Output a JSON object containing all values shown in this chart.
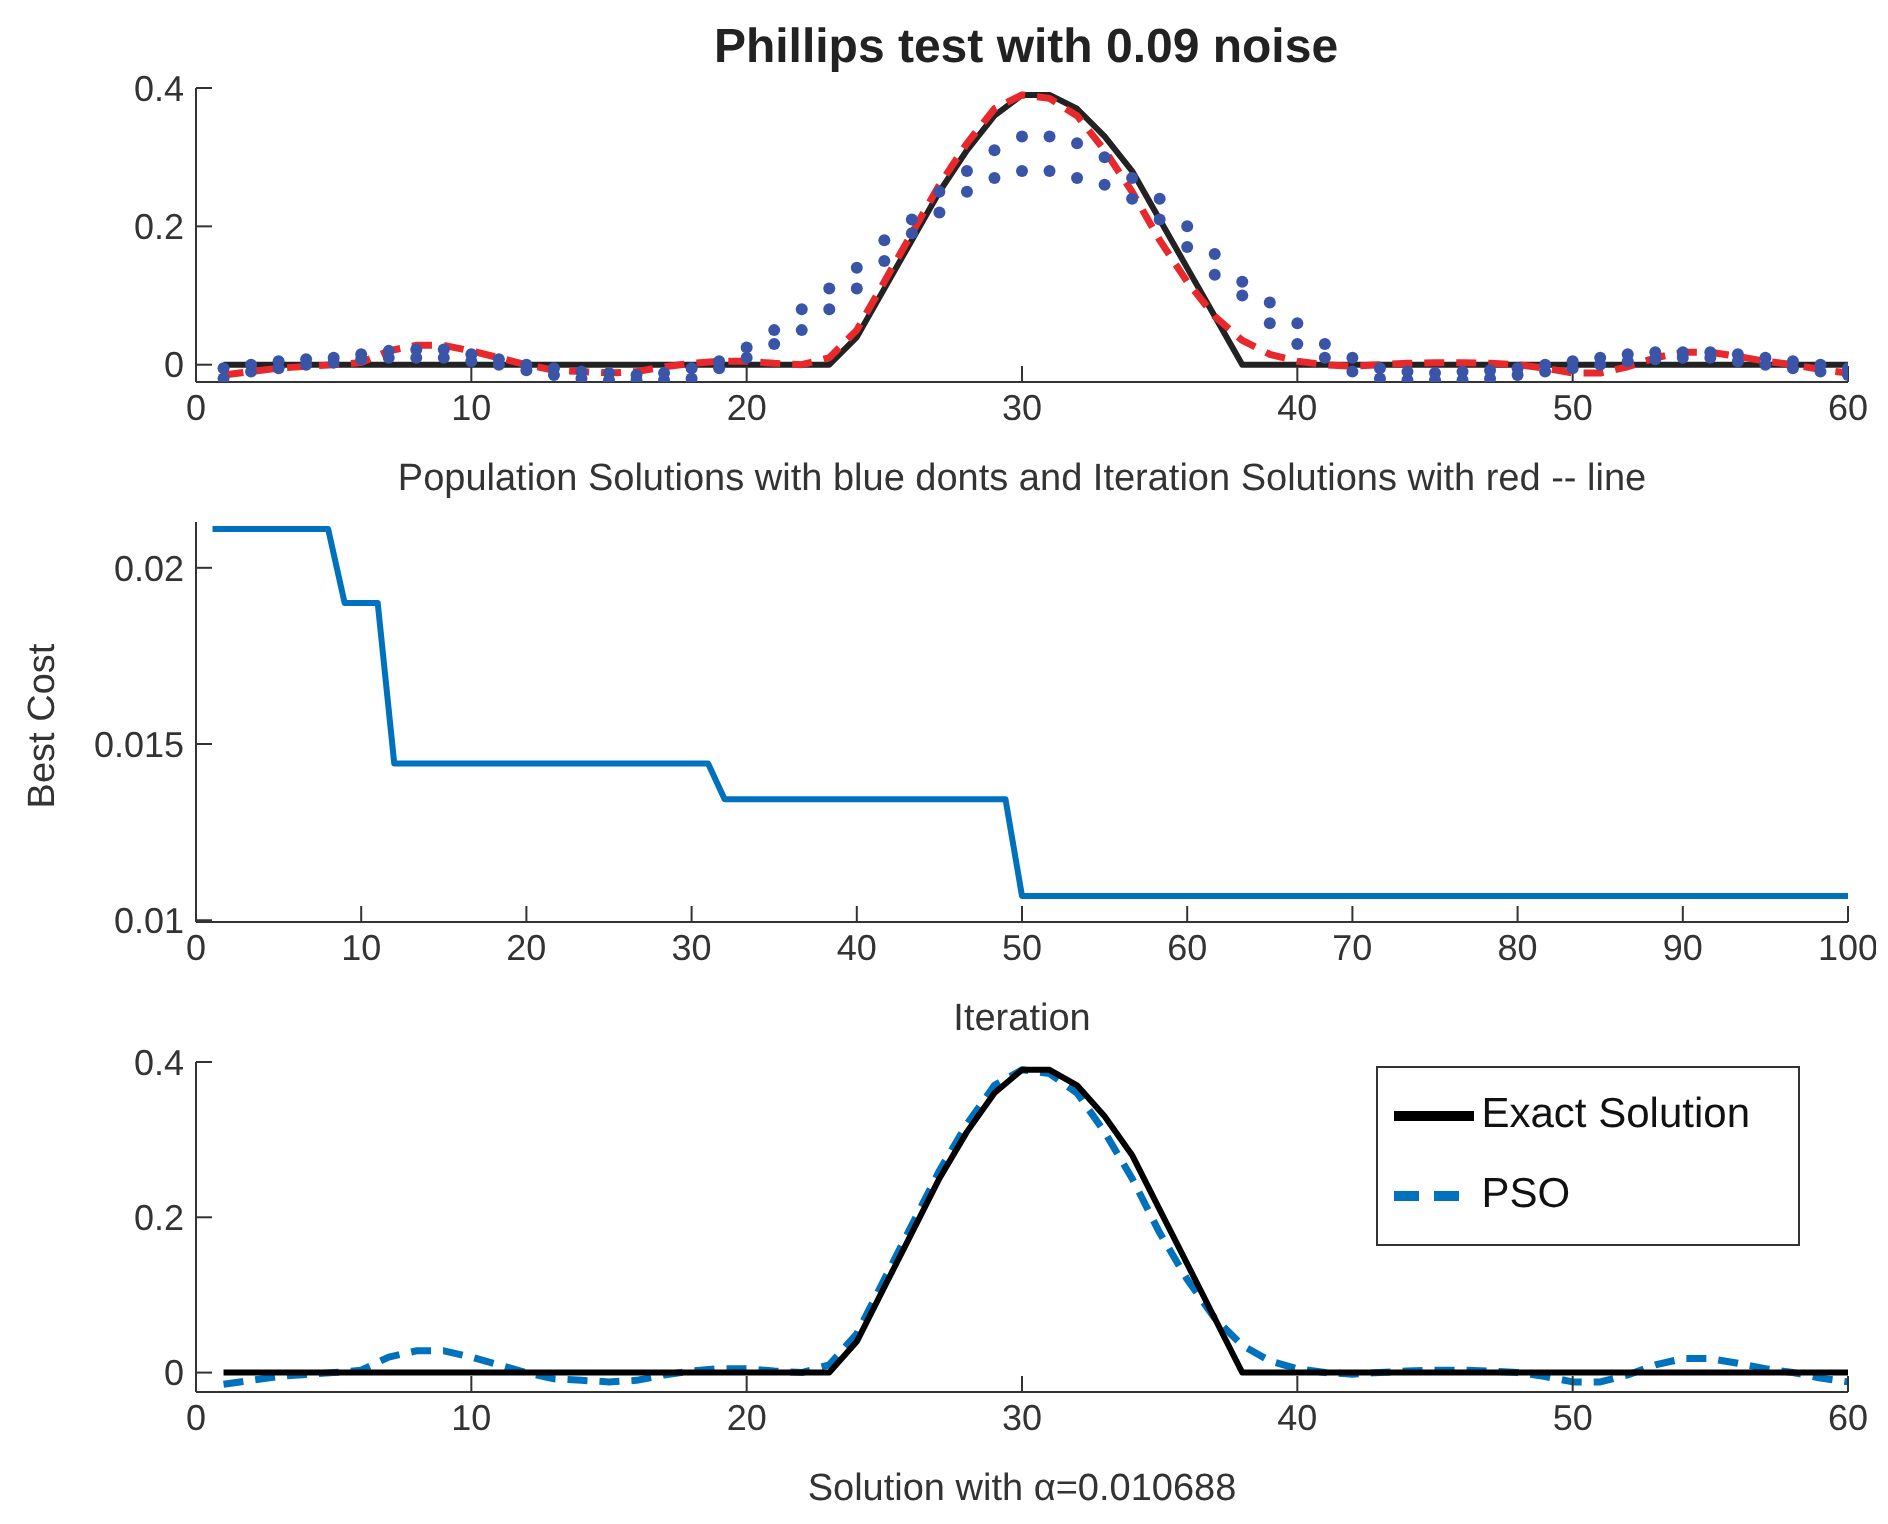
{
  "chart_data": [
    {
      "type": "line",
      "title": "Phillips test with 0.09 noise",
      "xlabel": "Population Solutions  with blue donts  and  Iteration Solutions with red -- line",
      "xlim": [
        0,
        60
      ],
      "xticks": [
        0,
        10,
        20,
        30,
        40,
        50,
        60
      ],
      "ylim": [
        -0.025,
        0.4
      ],
      "yticks": [
        0,
        0.2,
        0.4
      ],
      "grid": false,
      "legend": false,
      "series": [
        {
          "type": "scatter",
          "marker": "circle",
          "color": "#3a55a8",
          "x": [
            1,
            1,
            2,
            2,
            3,
            3,
            4,
            4,
            5,
            5,
            6,
            6,
            7,
            7,
            8,
            8,
            9,
            9,
            10,
            10,
            11,
            11,
            12,
            12,
            13,
            13,
            14,
            14,
            15,
            15,
            16,
            16,
            17,
            17,
            18,
            18,
            19,
            19,
            20,
            20,
            21,
            21,
            22,
            22,
            23,
            23,
            24,
            24,
            25,
            25,
            26,
            26,
            27,
            27,
            28,
            28,
            29,
            29,
            30,
            30,
            31,
            31,
            32,
            32,
            33,
            33,
            34,
            34,
            35,
            35,
            36,
            36,
            37,
            37,
            38,
            38,
            39,
            39,
            40,
            40,
            41,
            41,
            42,
            42,
            43,
            43,
            44,
            44,
            45,
            45,
            46,
            46,
            47,
            47,
            48,
            48,
            49,
            49,
            50,
            50,
            51,
            51,
            52,
            52,
            53,
            53,
            54,
            54,
            55,
            55,
            56,
            56,
            57,
            57,
            58,
            58,
            59,
            59,
            60,
            60
          ],
          "values": [
            -0.02,
            -0.005,
            -0.01,
            0,
            -0.005,
            0.005,
            0,
            0.008,
            0.003,
            0.01,
            0.008,
            0.015,
            0.01,
            0.02,
            0.01,
            0.022,
            0.01,
            0.022,
            0.005,
            0.015,
            0,
            0.008,
            -0.008,
            0,
            -0.015,
            -0.005,
            -0.02,
            -0.01,
            -0.022,
            -0.012,
            -0.022,
            -0.015,
            -0.022,
            -0.012,
            -0.02,
            -0.005,
            -0.005,
            0.005,
            0.01,
            0.025,
            0.03,
            0.05,
            0.05,
            0.08,
            0.08,
            0.11,
            0.11,
            0.14,
            0.15,
            0.18,
            0.19,
            0.21,
            0.22,
            0.25,
            0.25,
            0.28,
            0.27,
            0.31,
            0.28,
            0.33,
            0.28,
            0.33,
            0.27,
            0.32,
            0.26,
            0.3,
            0.24,
            0.27,
            0.21,
            0.24,
            0.17,
            0.2,
            0.13,
            0.16,
            0.1,
            0.12,
            0.06,
            0.09,
            0.03,
            0.06,
            0.01,
            0.03,
            -0.01,
            0.01,
            -0.02,
            -0.005,
            -0.022,
            -0.01,
            -0.022,
            -0.012,
            -0.022,
            -0.01,
            -0.02,
            -0.008,
            -0.015,
            -0.005,
            -0.01,
            0,
            -0.005,
            0.005,
            0,
            0.01,
            0.005,
            0.015,
            0.008,
            0.018,
            0.01,
            0.018,
            0.01,
            0.018,
            0.005,
            0.015,
            0,
            0.01,
            -0.005,
            0.005,
            -0.01,
            0,
            -0.015,
            -0.005
          ]
        },
        {
          "type": "line",
          "color": "#222222",
          "line_style": "solid",
          "x": [
            1,
            23,
            24,
            25,
            26,
            27,
            28,
            29,
            30,
            31,
            32,
            33,
            34,
            35,
            36,
            37,
            38,
            60
          ],
          "values": [
            0,
            0,
            0.04,
            0.11,
            0.18,
            0.25,
            0.31,
            0.36,
            0.39,
            0.39,
            0.37,
            0.33,
            0.28,
            0.21,
            0.14,
            0.07,
            0,
            0
          ]
        },
        {
          "type": "line",
          "color": "#e8282b",
          "line_style": "dashed",
          "x": [
            1,
            3,
            5,
            6,
            7,
            8,
            9,
            10,
            11,
            12,
            13,
            14,
            15,
            16,
            17,
            18,
            19,
            20,
            21,
            22,
            23,
            24,
            25,
            26,
            27,
            28,
            29,
            30,
            31,
            32,
            33,
            34,
            35,
            36,
            37,
            38,
            39,
            40,
            41,
            42,
            43,
            44,
            45,
            46,
            47,
            48,
            49,
            50,
            51,
            52,
            53,
            54,
            55,
            56,
            57,
            58,
            59,
            60
          ],
          "values": [
            -0.015,
            -0.005,
            0,
            0.003,
            0.02,
            0.028,
            0.028,
            0.02,
            0.01,
            0,
            -0.008,
            -0.01,
            -0.012,
            -0.01,
            -0.003,
            0.002,
            0.005,
            0.005,
            0.002,
            0,
            0.01,
            0.05,
            0.12,
            0.19,
            0.26,
            0.32,
            0.37,
            0.39,
            0.385,
            0.36,
            0.31,
            0.25,
            0.18,
            0.12,
            0.07,
            0.035,
            0.015,
            0.005,
            0,
            -0.002,
            0,
            0.002,
            0.003,
            0.003,
            0.002,
            0,
            -0.005,
            -0.012,
            -0.012,
            -0.003,
            0.01,
            0.018,
            0.018,
            0.012,
            0.005,
            0,
            -0.007,
            -0.012
          ]
        }
      ]
    },
    {
      "type": "line",
      "xlabel": "Iteration",
      "ylabel": "Best Cost",
      "xlim": [
        0,
        100
      ],
      "xticks": [
        0,
        10,
        20,
        30,
        40,
        50,
        60,
        70,
        80,
        90,
        100
      ],
      "ylim": [
        0.00995,
        0.0213
      ],
      "yticks": [
        0.01,
        0.015,
        0.02
      ],
      "grid": false,
      "legend": false,
      "series": [
        {
          "type": "line",
          "color": "#0072bd",
          "line_style": "solid",
          "x": [
            1,
            8,
            9,
            11,
            12,
            31,
            32,
            49,
            50,
            100
          ],
          "values": [
            0.0211,
            0.0211,
            0.019,
            0.019,
            0.01445,
            0.01445,
            0.01343,
            0.01343,
            0.01069,
            0.01069
          ]
        }
      ]
    },
    {
      "type": "line",
      "xlabel": "Solution with  α=0.010688",
      "xlim": [
        0,
        60
      ],
      "xticks": [
        0,
        10,
        20,
        30,
        40,
        50,
        60
      ],
      "ylim": [
        -0.025,
        0.4
      ],
      "yticks": [
        0,
        0.2,
        0.4
      ],
      "grid": false,
      "legend": "top right",
      "series": [
        {
          "type": "line",
          "name": "PSO",
          "color": "#0072bd",
          "line_style": "dashed",
          "x": [
            1,
            3,
            5,
            6,
            7,
            8,
            9,
            10,
            11,
            12,
            13,
            14,
            15,
            16,
            17,
            18,
            19,
            20,
            21,
            22,
            23,
            24,
            25,
            26,
            27,
            28,
            29,
            30,
            31,
            32,
            33,
            34,
            35,
            36,
            37,
            38,
            39,
            40,
            41,
            42,
            43,
            44,
            45,
            46,
            47,
            48,
            49,
            50,
            51,
            52,
            53,
            54,
            55,
            56,
            57,
            58,
            59,
            60
          ],
          "values": [
            -0.015,
            -0.005,
            0,
            0.003,
            0.02,
            0.028,
            0.028,
            0.02,
            0.01,
            0,
            -0.008,
            -0.01,
            -0.012,
            -0.01,
            -0.003,
            0.002,
            0.005,
            0.005,
            0.002,
            0,
            0.01,
            0.05,
            0.12,
            0.19,
            0.26,
            0.32,
            0.37,
            0.39,
            0.385,
            0.36,
            0.31,
            0.25,
            0.18,
            0.12,
            0.07,
            0.035,
            0.015,
            0.005,
            0,
            -0.002,
            0,
            0.002,
            0.003,
            0.003,
            0.002,
            0,
            -0.005,
            -0.012,
            -0.012,
            -0.003,
            0.01,
            0.018,
            0.018,
            0.012,
            0.005,
            0,
            -0.007,
            -0.012
          ]
        },
        {
          "type": "line",
          "name": "Exact Solution",
          "color": "#000000",
          "line_style": "solid",
          "x": [
            1,
            23,
            24,
            25,
            26,
            27,
            28,
            29,
            30,
            31,
            32,
            33,
            34,
            35,
            36,
            37,
            38,
            60
          ],
          "values": [
            0,
            0,
            0.04,
            0.11,
            0.18,
            0.25,
            0.31,
            0.36,
            0.39,
            0.39,
            0.37,
            0.33,
            0.28,
            0.21,
            0.14,
            0.07,
            0,
            0
          ]
        }
      ]
    }
  ]
}
